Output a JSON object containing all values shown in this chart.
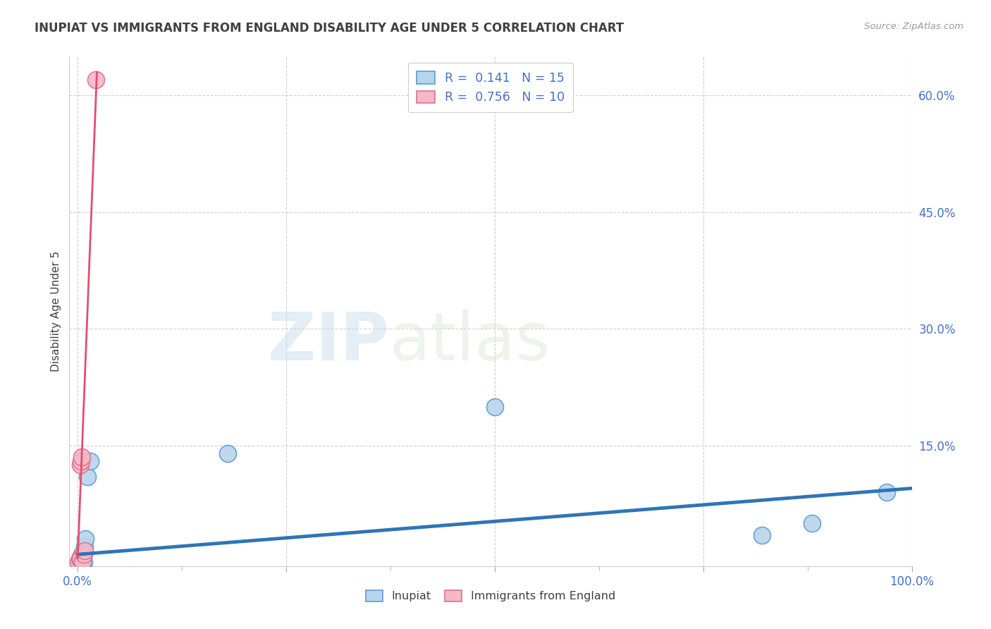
{
  "title": "INUPIAT VS IMMIGRANTS FROM ENGLAND DISABILITY AGE UNDER 5 CORRELATION CHART",
  "source": "Source: ZipAtlas.com",
  "xlabel": "",
  "ylabel": "Disability Age Under 5",
  "xlim": [
    -0.01,
    1.0
  ],
  "ylim": [
    -0.005,
    0.65
  ],
  "yticks": [
    0.15,
    0.3,
    0.45,
    0.6
  ],
  "ytick_labels": [
    "15.0%",
    "30.0%",
    "45.0%",
    "60.0%"
  ],
  "xticks": [
    0.0,
    0.25,
    0.5,
    0.75,
    1.0
  ],
  "xtick_labels": [
    "0.0%",
    "",
    "",
    "",
    "100.0%"
  ],
  "watermark_zip": "ZIP",
  "watermark_atlas": "atlas",
  "inupiat": {
    "x": [
      0.002,
      0.003,
      0.004,
      0.005,
      0.006,
      0.007,
      0.008,
      0.009,
      0.012,
      0.015,
      0.18,
      0.5,
      0.82,
      0.88,
      0.97
    ],
    "y": [
      0.0,
      0.005,
      0.0,
      0.01,
      0.0,
      0.0,
      0.02,
      0.03,
      0.11,
      0.13,
      0.14,
      0.2,
      0.035,
      0.05,
      0.09
    ],
    "color": "#b8d4eb",
    "edge_color": "#5b9bd5",
    "R": 0.141,
    "N": 15,
    "trend_x": [
      0.0,
      1.0
    ],
    "trend_y": [
      0.01,
      0.095
    ],
    "trend_color": "#2e75b6",
    "trend_lw": 3.5
  },
  "england": {
    "x": [
      0.001,
      0.002,
      0.003,
      0.003,
      0.004,
      0.005,
      0.006,
      0.007,
      0.008,
      0.022
    ],
    "y": [
      0.0,
      0.005,
      0.005,
      0.125,
      0.13,
      0.135,
      0.0,
      0.01,
      0.015,
      0.62
    ],
    "color": "#f4b8c8",
    "edge_color": "#e07090",
    "R": 0.756,
    "N": 10,
    "trend_x": [
      0.0,
      0.023
    ],
    "trend_y": [
      0.005,
      0.63
    ],
    "trend_color": "#e05070",
    "trend_lw": 2.0
  },
  "legend_box_color": "#ffffff",
  "title_color": "#404040",
  "axis_label_color": "#404040",
  "tick_color": "#4472c4",
  "grid_color": "#d0d0d0",
  "background_color": "#ffffff"
}
